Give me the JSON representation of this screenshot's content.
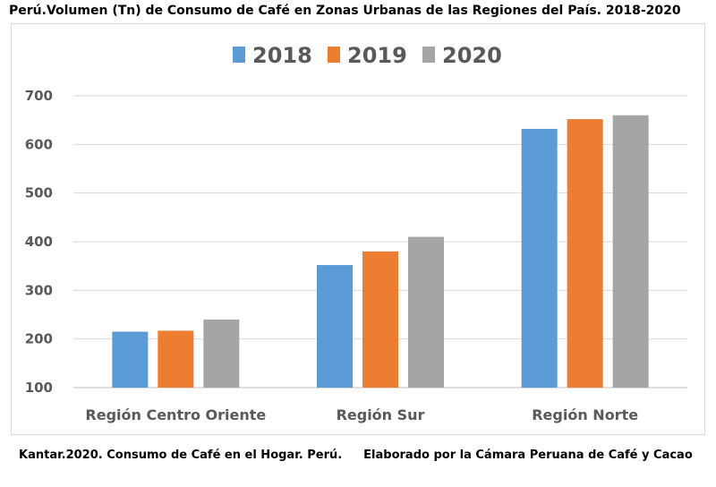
{
  "title": "Perú.Volumen (Tn)  de Consumo de Café en Zonas Urbanas de las Regiones del País. 2018-2020",
  "footer": {
    "source": "Kantar.2020. Consumo de Café en el Hogar. Perú.",
    "credit": "Elaborado por la Cámara Peruana de Café y Cacao"
  },
  "chart_data": {
    "type": "bar",
    "categories": [
      "Región Centro Oriente",
      "Región Sur",
      "Región Norte"
    ],
    "series": [
      {
        "name": "2018",
        "color": "#5B9BD5",
        "values": [
          215,
          352,
          632
        ]
      },
      {
        "name": "2019",
        "color": "#ED7D31",
        "values": [
          217,
          380,
          652
        ]
      },
      {
        "name": "2020",
        "color": "#A5A5A5",
        "values": [
          240,
          410,
          660
        ]
      }
    ],
    "ylim": [
      100,
      700
    ],
    "yticks": [
      100,
      200,
      300,
      400,
      500,
      600,
      700
    ],
    "grid": true,
    "legend": "top-center"
  }
}
